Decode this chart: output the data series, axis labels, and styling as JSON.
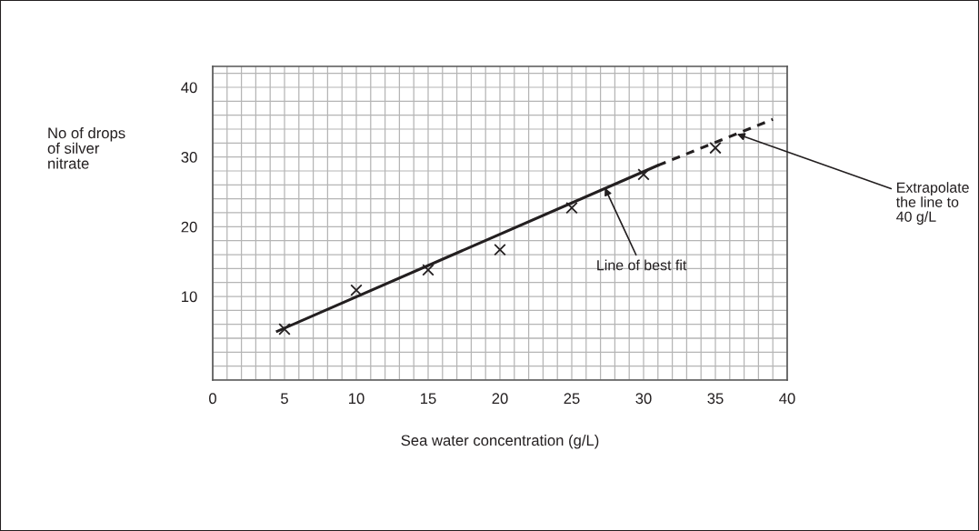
{
  "chart_data": {
    "type": "scatter",
    "xlabel": "Sea water concentration (g/L)",
    "ylabel": "No of drops\nof silver\nnitrate",
    "xlim": [
      0,
      40
    ],
    "xticks": [
      0,
      5,
      10,
      15,
      20,
      25,
      30,
      35,
      40
    ],
    "ylim": [
      -2,
      43
    ],
    "yticks": [
      10,
      20,
      30,
      40
    ],
    "grid": true,
    "series": [
      {
        "marker": "cross",
        "color": "#231f20",
        "x": [
          5,
          10,
          15,
          20,
          25,
          30,
          35
        ],
        "values": [
          5.3,
          10.9,
          13.8,
          16.7,
          22.7,
          27.5,
          31.3
        ]
      },
      {
        "type": "line",
        "line_style": "solid",
        "color": "#231f20",
        "x": [
          4.5,
          31
        ],
        "values": [
          5.0,
          28.8
        ]
      },
      {
        "type": "line",
        "line_style": "dashed",
        "color": "#231f20",
        "x": [
          31,
          39
        ],
        "values": [
          28.8,
          35.4
        ]
      }
    ],
    "annotations": [
      {
        "text": "Line of best fit",
        "x": 27.3,
        "y": 25.6
      },
      {
        "text": "Extrapolate\nthe line to\n40 g/L",
        "x": 36.5,
        "y": 33.3
      }
    ]
  }
}
